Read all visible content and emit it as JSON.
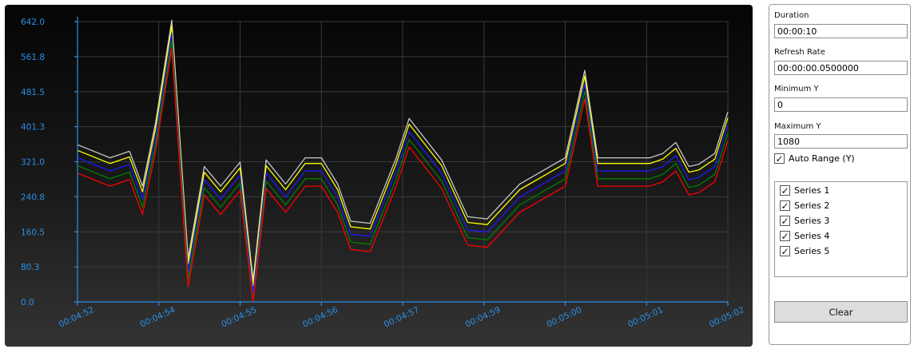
{
  "settings": {
    "duration_label": "Duration",
    "duration_value": "00:00:10",
    "refresh_rate_label": "Refresh Rate",
    "refresh_rate_value": "00:00:00.0500000",
    "min_y_label": "Minimum Y",
    "min_y_value": "0",
    "max_y_label": "Maximum Y",
    "max_y_value": "1080",
    "auto_range_label": "Auto Range (Y)",
    "auto_range_checked": true,
    "series": [
      {
        "label": "Series 1",
        "checked": true
      },
      {
        "label": "Series 2",
        "checked": true
      },
      {
        "label": "Series 3",
        "checked": true
      },
      {
        "label": "Series 4",
        "checked": true
      },
      {
        "label": "Series 5",
        "checked": true
      }
    ],
    "clear_label": "Clear"
  },
  "colors": {
    "axis": "#2a8fe8",
    "series": [
      "#c9c9c9",
      "#ffff00",
      "#1a1aff",
      "#008000",
      "#ff0000"
    ]
  },
  "chart_data": {
    "type": "line",
    "y_ticks": [
      "0.0",
      "80.3",
      "160.5",
      "240.8",
      "321.0",
      "401.3",
      "481.5",
      "561.8",
      "642.0"
    ],
    "ylim": [
      0,
      642
    ],
    "x_ticks": [
      "00:04:52",
      "00:04:54",
      "00:04:55",
      "00:04:56",
      "00:04:57",
      "00:04:59",
      "00:05:00",
      "00:05:01",
      "00:05:02"
    ],
    "grid": true,
    "x": [
      0,
      0.5,
      0.8,
      1,
      1.2,
      1.45,
      1.7,
      1.95,
      2.2,
      2.5,
      2.7,
      2.9,
      3.2,
      3.5,
      3.75,
      4.0,
      4.2,
      4.5,
      4.9,
      5.1,
      5.6,
      6.0,
      6.3,
      6.8,
      7.5,
      7.8,
      8.0,
      8.5,
      8.6,
      8.8,
      9.0,
      9.2,
      9.4,
      9.55,
      9.8,
      10.0
    ],
    "series_offsets": [
      30,
      17,
      0,
      -18,
      -35
    ],
    "base_values": [
      330,
      300,
      315,
      235,
      380,
      615,
      70,
      280,
      235,
      290,
      20,
      295,
      240,
      300,
      300,
      240,
      155,
      150,
      300,
      390,
      295,
      165,
      160,
      240,
      300,
      500,
      300,
      300,
      300,
      300,
      310,
      335,
      280,
      285,
      310,
      405
    ]
  }
}
